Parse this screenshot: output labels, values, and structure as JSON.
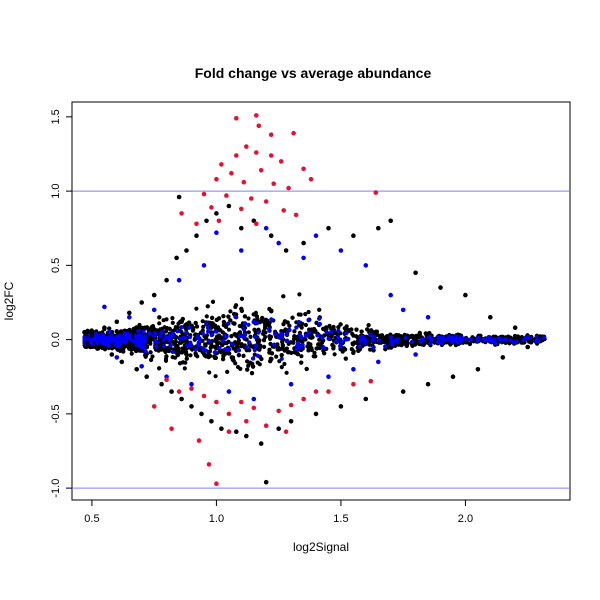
{
  "chart_data": {
    "type": "scatter",
    "title": "Fold change vs average abundance",
    "xlabel": "log2Signal",
    "ylabel": "log2FC",
    "xlim": [
      0.42,
      2.42
    ],
    "ylim": [
      -1.08,
      1.6
    ],
    "x_ticks": [
      0.5,
      1.0,
      1.5,
      2.0
    ],
    "x_tick_labels": [
      "0.5",
      "1.0",
      "1.5",
      "2.0"
    ],
    "y_ticks": [
      -1.0,
      -0.5,
      0.0,
      0.5,
      1.0,
      1.5
    ],
    "y_tick_labels": [
      "-1.0",
      "-0.5",
      "0.0",
      "0.5",
      "1.0",
      "1.5"
    ],
    "reference_lines": [
      {
        "axis": "y",
        "value": 1.0,
        "color": "#7f7fff"
      },
      {
        "axis": "y",
        "value": -1.0,
        "color": "#7f7fff"
      }
    ],
    "grid": false,
    "legend": "none",
    "series": [
      {
        "color": "#000000",
        "points": [
          [
            0.47,
            0.05
          ],
          [
            0.48,
            -0.02
          ],
          [
            0.5,
            0.03
          ],
          [
            0.52,
            -0.05
          ],
          [
            0.55,
            0.08
          ],
          [
            0.58,
            -0.1
          ],
          [
            0.6,
            0.12
          ],
          [
            0.62,
            -0.15
          ],
          [
            0.65,
            0.18
          ],
          [
            0.68,
            -0.2
          ],
          [
            0.7,
            0.25
          ],
          [
            0.72,
            -0.25
          ],
          [
            0.75,
            0.3
          ],
          [
            0.78,
            -0.3
          ],
          [
            0.8,
            0.4
          ],
          [
            0.82,
            -0.35
          ],
          [
            0.84,
            0.55
          ],
          [
            0.85,
            0.96
          ],
          [
            0.86,
            -0.4
          ],
          [
            0.88,
            0.6
          ],
          [
            0.9,
            -0.45
          ],
          [
            0.92,
            0.7
          ],
          [
            0.94,
            -0.5
          ],
          [
            0.96,
            0.8
          ],
          [
            0.98,
            -0.55
          ],
          [
            1.0,
            0.85
          ],
          [
            1.02,
            -0.6
          ],
          [
            1.05,
            0.9
          ],
          [
            1.08,
            -0.62
          ],
          [
            1.1,
            0.75
          ],
          [
            1.12,
            -0.65
          ],
          [
            1.15,
            0.8
          ],
          [
            1.18,
            -0.7
          ],
          [
            1.2,
            -0.96
          ],
          [
            1.22,
            0.7
          ],
          [
            1.25,
            -0.6
          ],
          [
            1.28,
            0.6
          ],
          [
            1.3,
            -0.55
          ],
          [
            1.35,
            0.65
          ],
          [
            1.4,
            -0.5
          ],
          [
            1.45,
            0.75
          ],
          [
            1.5,
            -0.45
          ],
          [
            1.55,
            0.7
          ],
          [
            1.6,
            -0.4
          ],
          [
            1.65,
            0.75
          ],
          [
            1.7,
            0.8
          ],
          [
            1.75,
            -0.35
          ],
          [
            1.8,
            0.45
          ],
          [
            1.85,
            -0.3
          ],
          [
            1.9,
            0.35
          ],
          [
            1.95,
            -0.25
          ],
          [
            2.0,
            0.3
          ],
          [
            2.05,
            -0.2
          ],
          [
            2.1,
            0.15
          ],
          [
            2.15,
            -0.12
          ],
          [
            2.2,
            0.08
          ],
          [
            2.25,
            -0.05
          ],
          [
            2.3,
            0.02
          ]
        ]
      },
      {
        "color": "#0000ff",
        "points": [
          [
            0.55,
            0.22
          ],
          [
            0.6,
            -0.12
          ],
          [
            0.65,
            0.15
          ],
          [
            0.7,
            -0.18
          ],
          [
            0.75,
            0.2
          ],
          [
            0.8,
            -0.25
          ],
          [
            0.85,
            0.4
          ],
          [
            0.9,
            -0.3
          ],
          [
            0.95,
            0.5
          ],
          [
            1.0,
            0.72
          ],
          [
            1.05,
            -0.35
          ],
          [
            1.1,
            0.6
          ],
          [
            1.15,
            -0.4
          ],
          [
            1.2,
            0.75
          ],
          [
            1.25,
            0.65
          ],
          [
            1.3,
            -0.3
          ],
          [
            1.35,
            0.55
          ],
          [
            1.4,
            0.7
          ],
          [
            1.45,
            -0.25
          ],
          [
            1.5,
            0.6
          ],
          [
            1.55,
            -0.2
          ],
          [
            1.6,
            0.5
          ],
          [
            1.65,
            -0.15
          ],
          [
            1.7,
            0.3
          ],
          [
            1.75,
            0.2
          ],
          [
            1.8,
            -0.1
          ],
          [
            1.85,
            0.15
          ]
        ]
      },
      {
        "color": "#e8102e",
        "points": [
          [
            1.08,
            1.49
          ],
          [
            1.16,
            1.51
          ],
          [
            1.17,
            1.44
          ],
          [
            1.22,
            1.38
          ],
          [
            1.31,
            1.39
          ],
          [
            1.12,
            1.3
          ],
          [
            1.16,
            1.26
          ],
          [
            1.08,
            1.24
          ],
          [
            1.22,
            1.24
          ],
          [
            1.26,
            1.2
          ],
          [
            1.02,
            1.18
          ],
          [
            1.35,
            1.15
          ],
          [
            1.06,
            1.12
          ],
          [
            1.18,
            1.14
          ],
          [
            1.38,
            1.08
          ],
          [
            1.0,
            1.08
          ],
          [
            1.11,
            1.06
          ],
          [
            1.23,
            1.05
          ],
          [
            1.29,
            1.02
          ],
          [
            1.64,
            0.99
          ],
          [
            0.95,
            0.98
          ],
          [
            1.04,
            0.97
          ],
          [
            1.14,
            0.95
          ],
          [
            1.2,
            0.93
          ],
          [
            0.86,
            0.85
          ],
          [
            0.98,
            0.89
          ],
          [
            1.1,
            0.88
          ],
          [
            1.27,
            0.87
          ],
          [
            1.32,
            0.84
          ],
          [
            0.92,
            0.78
          ],
          [
            1.01,
            0.8
          ],
          [
            1.16,
            0.78
          ],
          [
            0.8,
            -0.27
          ],
          [
            0.85,
            -0.35
          ],
          [
            0.9,
            -0.33
          ],
          [
            0.95,
            -0.38
          ],
          [
            1.0,
            -0.42
          ],
          [
            1.05,
            -0.5
          ],
          [
            1.1,
            -0.42
          ],
          [
            1.15,
            -0.46
          ],
          [
            1.25,
            -0.48
          ],
          [
            1.3,
            -0.44
          ],
          [
            1.4,
            -0.35
          ],
          [
            0.75,
            -0.45
          ],
          [
            0.82,
            -0.6
          ],
          [
            0.93,
            -0.68
          ],
          [
            0.97,
            -0.84
          ],
          [
            1.0,
            -0.97
          ],
          [
            1.05,
            -0.62
          ],
          [
            1.12,
            -0.55
          ],
          [
            1.2,
            -0.58
          ],
          [
            1.28,
            -0.62
          ],
          [
            1.35,
            -0.4
          ],
          [
            1.45,
            -0.35
          ],
          [
            1.55,
            -0.3
          ],
          [
            1.62,
            -0.28
          ]
        ]
      }
    ]
  }
}
